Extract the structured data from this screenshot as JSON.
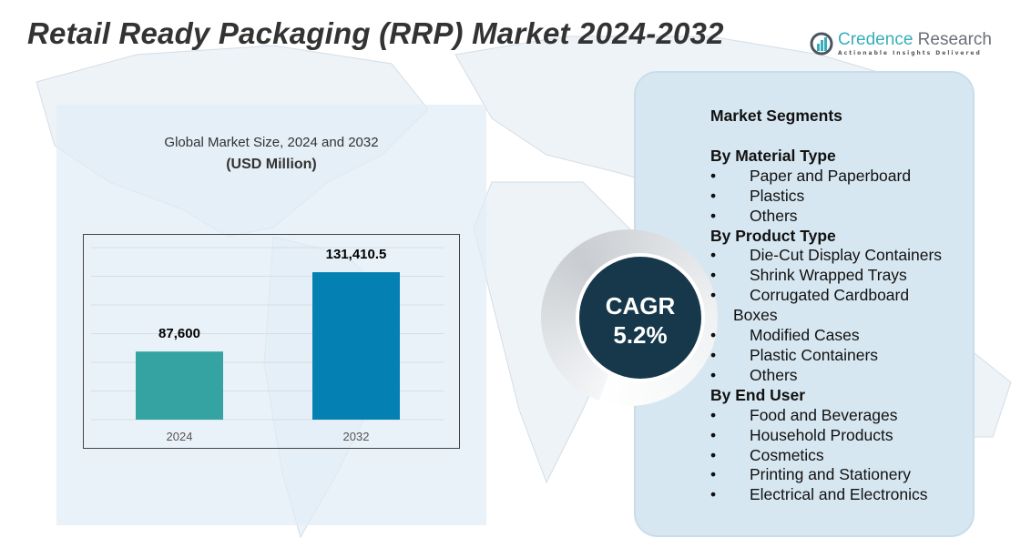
{
  "title": "Retail Ready Packaging (RRP) Market 2024-2032",
  "logo": {
    "name_a": "Credence",
    "name_b": " Research",
    "tagline": "Actionable Insights Delivered"
  },
  "chart_data": {
    "type": "bar",
    "title": "Global Market Size, 2024 and 2032",
    "subtitle": "(USD Million)",
    "categories": [
      "2024",
      "2032"
    ],
    "values": [
      87600,
      131410.5
    ],
    "value_labels": [
      "87,600",
      "131,410.5"
    ],
    "colors": [
      "#35a3a1",
      "#0580b3"
    ],
    "ylim": [
      50000,
      145000
    ],
    "grid": true
  },
  "cagr": {
    "label": "CAGR",
    "value": "5.2%"
  },
  "segments": {
    "heading": "Market Segments",
    "groups": [
      {
        "title": "By Material Type",
        "items": [
          "Paper and Paperboard",
          "Plastics",
          "Others"
        ]
      },
      {
        "title": "By Product Type",
        "items": [
          "Die-Cut Display Containers",
          "Shrink Wrapped Trays",
          "Corrugated Cardboard",
          "Modified Cases",
          "Plastic Containers",
          "Others"
        ],
        "continuation": "Boxes"
      },
      {
        "title": "By End User",
        "items": [
          "Food and Beverages",
          "Household Products",
          "Cosmetics",
          "Printing and Stationery",
          "Electrical and Electronics"
        ]
      }
    ],
    "bullet": "•"
  }
}
